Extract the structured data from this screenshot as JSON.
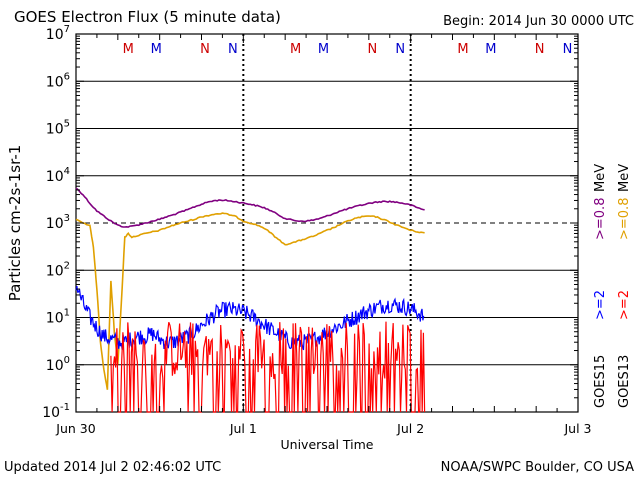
{
  "header": {
    "title": "GOES Electron Flux (5 minute data)",
    "begin": "Begin: 2014 Jun 30 0000 UTC"
  },
  "footer": {
    "updated": "Updated 2014 Jul  2 02:46:02 UTC",
    "credit": "NOAA/SWPC Boulder, CO USA"
  },
  "legend": {
    "goes15": "GOES15",
    "goes13": "GOES13",
    "ge2": ">=2",
    "ge08": ">=0.8",
    "unit": "MeV"
  },
  "colors": {
    "p08_g15": "#800080",
    "p08_g13": "#e0a000",
    "p2_g15": "#0000ff",
    "p2_g13": "#ff0000",
    "axis": "#000000",
    "threshold": "#000000"
  },
  "chart_data": {
    "type": "line",
    "title": "GOES Electron Flux (5 minute data)",
    "xlabel": "Universal Time",
    "ylabel": "Particles cm-2s-1sr-1",
    "yscale": "log",
    "ylim": [
      0.1,
      10000000
    ],
    "xlim": [
      0,
      72
    ],
    "x_unit": "hours since 2014 Jun 30 0000 UTC",
    "x_ticks": [
      {
        "x": 0,
        "label": "Jun 30"
      },
      {
        "x": 24,
        "label": "Jul 1"
      },
      {
        "x": 48,
        "label": "Jul 2"
      },
      {
        "x": 72,
        "label": "Jul 3"
      }
    ],
    "y_ticks": [
      {
        "value": 0.1,
        "base": "10",
        "exp": "-1"
      },
      {
        "value": 1,
        "base": "10",
        "exp": "0"
      },
      {
        "value": 10,
        "base": "10",
        "exp": "1"
      },
      {
        "value": 100,
        "base": "10",
        "exp": "2"
      },
      {
        "value": 1000,
        "base": "10",
        "exp": "3"
      },
      {
        "value": 10000,
        "base": "10",
        "exp": "4"
      },
      {
        "value": 100000,
        "base": "10",
        "exp": "5"
      },
      {
        "value": 1000000,
        "base": "10",
        "exp": "6"
      },
      {
        "value": 10000000,
        "base": "10",
        "exp": "7"
      }
    ],
    "threshold": {
      "value": 1000,
      "style": "dashed"
    },
    "markers": [
      {
        "x": 7.5,
        "label": "M",
        "color": "#cc0000"
      },
      {
        "x": 11.5,
        "label": "M",
        "color": "#0000cc"
      },
      {
        "x": 18.5,
        "label": "N",
        "color": "#cc0000"
      },
      {
        "x": 22.5,
        "label": "N",
        "color": "#0000cc"
      },
      {
        "x": 31.5,
        "label": "M",
        "color": "#cc0000"
      },
      {
        "x": 35.5,
        "label": "M",
        "color": "#0000cc"
      },
      {
        "x": 42.5,
        "label": "N",
        "color": "#cc0000"
      },
      {
        "x": 46.5,
        "label": "N",
        "color": "#0000cc"
      },
      {
        "x": 55.5,
        "label": "M",
        "color": "#cc0000"
      },
      {
        "x": 59.5,
        "label": "M",
        "color": "#0000cc"
      },
      {
        "x": 66.5,
        "label": "N",
        "color": "#cc0000"
      },
      {
        "x": 70.5,
        "label": "N",
        "color": "#0000cc"
      }
    ],
    "dotted_verticals": [
      24,
      48
    ],
    "series": [
      {
        "name": "GOES15 >=0.8 MeV",
        "color": "#800080",
        "style": "line",
        "x": [
          0,
          1,
          2,
          3,
          4,
          5,
          6,
          7,
          8,
          9,
          10,
          11,
          12,
          13,
          14,
          15,
          16,
          17,
          18,
          19,
          20,
          21,
          22,
          23,
          24,
          25,
          26,
          27,
          28,
          29,
          30,
          31,
          32,
          33,
          34,
          35,
          36,
          37,
          38,
          39,
          40,
          41,
          42,
          43,
          44,
          45,
          46,
          47,
          48,
          49,
          50
        ],
        "values": [
          5500,
          4000,
          2600,
          1800,
          1400,
          1100,
          900,
          820,
          850,
          920,
          1000,
          1100,
          1200,
          1350,
          1500,
          1700,
          1900,
          2200,
          2500,
          2800,
          3000,
          3050,
          2950,
          2800,
          2650,
          2500,
          2300,
          2100,
          1800,
          1500,
          1250,
          1150,
          1100,
          1100,
          1150,
          1250,
          1400,
          1600,
          1800,
          2000,
          2200,
          2400,
          2600,
          2750,
          2850,
          2850,
          2750,
          2600,
          2400,
          2100,
          1900
        ]
      },
      {
        "name": "GOES13 >=0.8 MeV",
        "color": "#e0a000",
        "style": "line",
        "x": [
          0,
          1,
          2,
          2.5,
          3,
          3.5,
          4,
          4.5,
          5,
          5.5,
          6,
          6.5,
          7,
          7.5,
          8,
          9,
          10,
          11,
          12,
          13,
          14,
          15,
          16,
          17,
          18,
          19,
          20,
          21,
          22,
          23,
          24,
          25,
          26,
          27,
          28,
          29,
          30,
          31,
          32,
          33,
          34,
          35,
          36,
          37,
          38,
          39,
          40,
          41,
          42,
          43,
          44,
          45,
          46,
          47,
          48,
          49,
          50
        ],
        "values": [
          1200,
          1000,
          900,
          300,
          40,
          3,
          0.8,
          0.3,
          60,
          5,
          1,
          20,
          500,
          600,
          500,
          550,
          600,
          650,
          700,
          800,
          900,
          1000,
          1100,
          1200,
          1350,
          1450,
          1550,
          1600,
          1500,
          1350,
          1100,
          1000,
          900,
          780,
          600,
          450,
          350,
          380,
          420,
          470,
          520,
          600,
          700,
          800,
          950,
          1100,
          1250,
          1350,
          1400,
          1350,
          1200,
          1050,
          900,
          800,
          700,
          650,
          620
        ]
      },
      {
        "name": "GOES15 >=2 MeV",
        "color": "#0000ff",
        "style": "noisy",
        "x": [
          0,
          1,
          2,
          3,
          4,
          5,
          6,
          7,
          8,
          9,
          10,
          11,
          12,
          13,
          14,
          15,
          16,
          17,
          18,
          19,
          20,
          21,
          22,
          23,
          24,
          25,
          26,
          27,
          28,
          29,
          30,
          31,
          32,
          33,
          34,
          35,
          36,
          37,
          38,
          39,
          40,
          41,
          42,
          43,
          44,
          45,
          46,
          47,
          48,
          49,
          50
        ],
        "values": [
          50,
          20,
          10,
          6,
          4,
          3.5,
          3,
          3,
          3.5,
          4,
          4,
          4.5,
          3.5,
          3,
          3,
          3.5,
          4,
          5,
          7,
          9,
          12,
          14,
          15,
          14,
          13,
          11,
          9,
          7,
          5.5,
          4.5,
          3.5,
          3,
          3,
          3,
          3.5,
          4,
          5,
          6,
          7,
          8.5,
          10,
          12,
          14,
          16,
          18,
          19,
          18,
          17,
          15,
          13,
          10
        ]
      },
      {
        "name": "GOES13 >=2 MeV",
        "color": "#ff0000",
        "style": "spiky",
        "x": [
          5,
          50
        ],
        "values": [
          5,
          5
        ],
        "floor": 0.1
      }
    ]
  }
}
